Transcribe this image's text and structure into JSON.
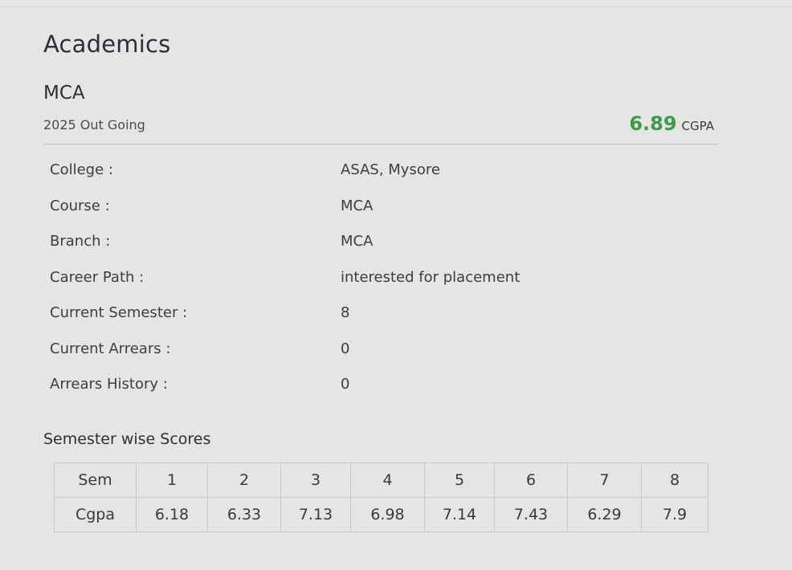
{
  "section": {
    "title": "Academics"
  },
  "education": {
    "degree": "MCA",
    "batch": "2025 Out Going",
    "cgpa_value": "6.89",
    "cgpa_label": "CGPA"
  },
  "details": [
    {
      "label": "College :",
      "value": "ASAS, Mysore"
    },
    {
      "label": "Course :",
      "value": "MCA"
    },
    {
      "label": "Branch :",
      "value": "MCA"
    },
    {
      "label": "Career Path :",
      "value": "interested for placement"
    },
    {
      "label": "Current Semester :",
      "value": "8"
    },
    {
      "label": "Current Arrears :",
      "value": "0"
    },
    {
      "label": "Arrears History :",
      "value": "0"
    }
  ],
  "scores": {
    "title": "Semester wise Scores",
    "row_headers": [
      "Sem",
      "Cgpa"
    ],
    "semesters": [
      "1",
      "2",
      "3",
      "4",
      "5",
      "6",
      "7",
      "8"
    ],
    "cgpa": [
      "6.18",
      "6.33",
      "7.13",
      "6.98",
      "7.14",
      "7.43",
      "6.29",
      "7.9"
    ]
  }
}
